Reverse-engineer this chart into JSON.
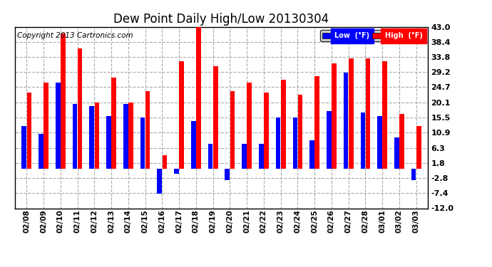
{
  "title": "Dew Point Daily High/Low 20130304",
  "copyright": "Copyright 2013 Cartronics.com",
  "legend_low": "Low  (°F)",
  "legend_high": "High  (°F)",
  "dates": [
    "02/08",
    "02/09",
    "02/10",
    "02/11",
    "02/12",
    "02/13",
    "02/14",
    "02/15",
    "02/16",
    "02/17",
    "02/18",
    "02/19",
    "02/20",
    "02/21",
    "02/22",
    "02/23",
    "02/24",
    "02/25",
    "02/26",
    "02/27",
    "02/28",
    "03/01",
    "03/02",
    "03/03"
  ],
  "high": [
    23.0,
    26.0,
    41.0,
    36.5,
    20.0,
    27.5,
    20.0,
    23.5,
    4.0,
    32.5,
    43.0,
    31.0,
    23.5,
    26.0,
    23.0,
    27.0,
    22.5,
    28.0,
    32.0,
    33.5,
    33.5,
    32.5,
    16.5,
    13.0
  ],
  "low": [
    13.0,
    10.5,
    26.0,
    19.5,
    19.0,
    16.0,
    19.5,
    15.5,
    -7.5,
    -1.5,
    14.5,
    7.5,
    -3.5,
    7.5,
    7.5,
    15.5,
    15.5,
    8.5,
    17.5,
    29.0,
    17.0,
    16.0,
    9.5,
    -3.5
  ],
  "bar_color_high": "#FF0000",
  "bar_color_low": "#0000FF",
  "bg_color": "#FFFFFF",
  "grid_color": "#AAAAAA",
  "yticks": [
    -12.0,
    -7.4,
    -2.8,
    1.8,
    6.3,
    10.9,
    15.5,
    20.1,
    24.7,
    29.2,
    33.8,
    38.4,
    43.0
  ],
  "ylim": [
    -12.0,
    43.0
  ],
  "title_fontsize": 12,
  "copyright_fontsize": 7.5,
  "tick_fontsize": 8,
  "bar_width": 0.28
}
